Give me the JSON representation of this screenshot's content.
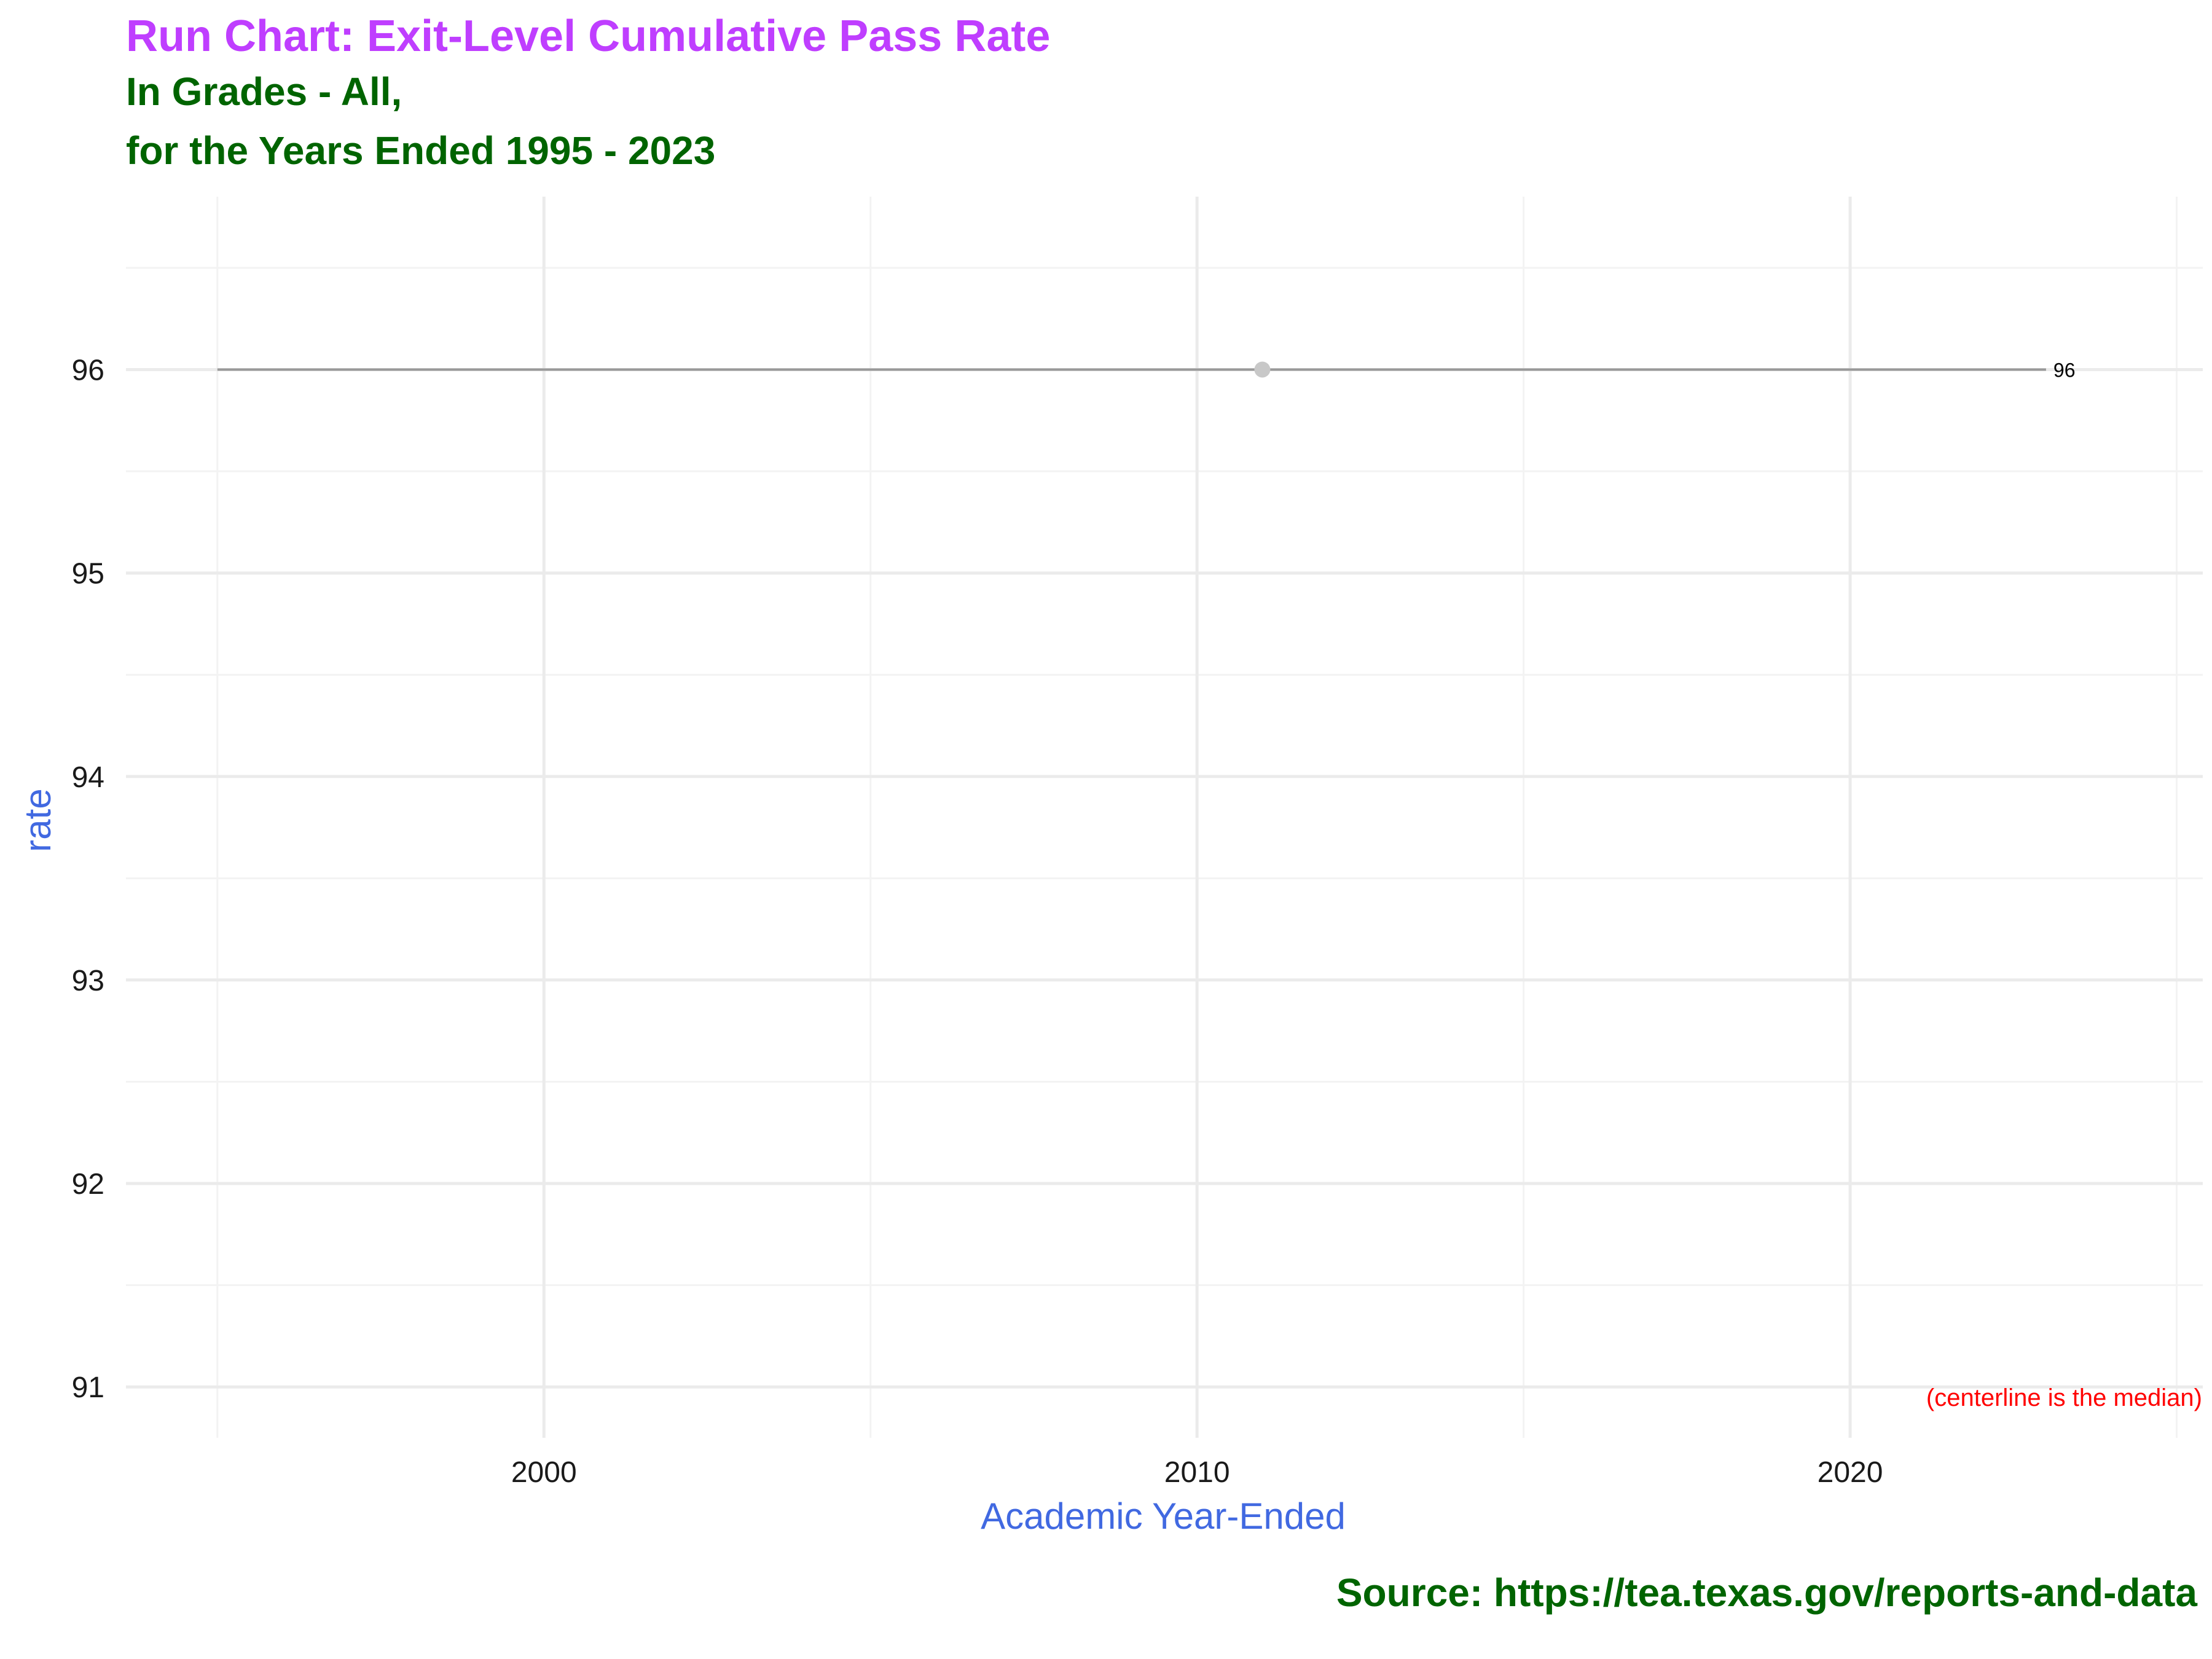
{
  "chart_data": {
    "type": "line",
    "title": "Run Chart: Exit-Level Cumulative Pass Rate",
    "subtitle_line1": "In Grades - All,",
    "subtitle_line2": "for the Years Ended 1995 - 2023",
    "xlabel": "Academic Year-Ended",
    "ylabel": "rate",
    "xlim": [
      1993.6,
      2025.4
    ],
    "ylim": [
      90.75,
      96.85
    ],
    "x_ticks": [
      2000,
      2010,
      2020
    ],
    "y_ticks": [
      91,
      92,
      93,
      94,
      95,
      96
    ],
    "grid": true,
    "series": [
      {
        "x": [
          2011
        ],
        "y": [
          96
        ]
      }
    ],
    "centerline": {
      "x_start": 1995,
      "x_end": 2023,
      "y": 96,
      "end_label": "96"
    },
    "annotation": "(centerline is the median)",
    "caption": "Source:  https://tea.texas.gov/reports-and-data",
    "colors": {
      "title": "#bf3eff",
      "subtitle": "#006400",
      "axis_title": "#4169e1",
      "annotation": "#ff0000",
      "caption": "#006400",
      "centerline": "#999999",
      "point": "#c8c8c8",
      "grid_major": "#ebebeb",
      "grid_minor": "#f3f3f3"
    }
  }
}
